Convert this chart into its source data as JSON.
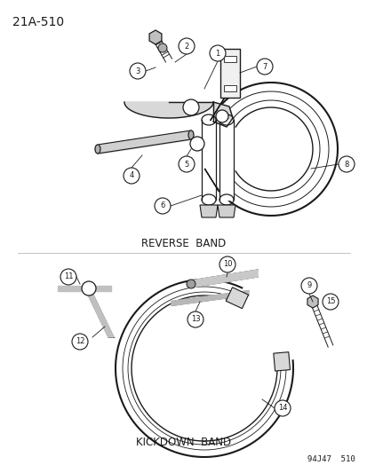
{
  "title": "21A-510",
  "background_color": "#ffffff",
  "line_color": "#1a1a1a",
  "label_reverse_band": "REVERSE  BAND",
  "label_kickdown_band": "KICKDOWN  BAND",
  "footer": "94J47  510",
  "figsize": [
    4.14,
    5.33
  ],
  "dpi": 100
}
